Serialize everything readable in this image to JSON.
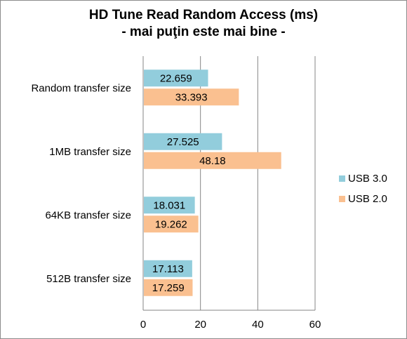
{
  "chart_data": {
    "type": "bar",
    "orientation": "horizontal",
    "title": "HD Tune Read Random Access (ms)",
    "subtitle": "- mai puţin este mai bine -",
    "categories": [
      "Random transfer size",
      "1MB transfer size",
      "64KB transfer size",
      "512B transfer size"
    ],
    "series": [
      {
        "name": "USB 3.0",
        "color": "#92cddc",
        "values": [
          22.659,
          27.525,
          18.031,
          17.113
        ],
        "labels": [
          "22.659",
          "27.525",
          "18.031",
          "17.113"
        ]
      },
      {
        "name": "USB 2.0",
        "color": "#fac090",
        "values": [
          33.393,
          48.18,
          19.262,
          17.259
        ],
        "labels": [
          "33.393",
          "48.18",
          "19.262",
          "17.259"
        ]
      }
    ],
    "xlim": [
      0,
      60
    ],
    "xticks": [
      "0",
      "20",
      "40",
      "60"
    ],
    "grid": "vertical",
    "legend": "right"
  }
}
